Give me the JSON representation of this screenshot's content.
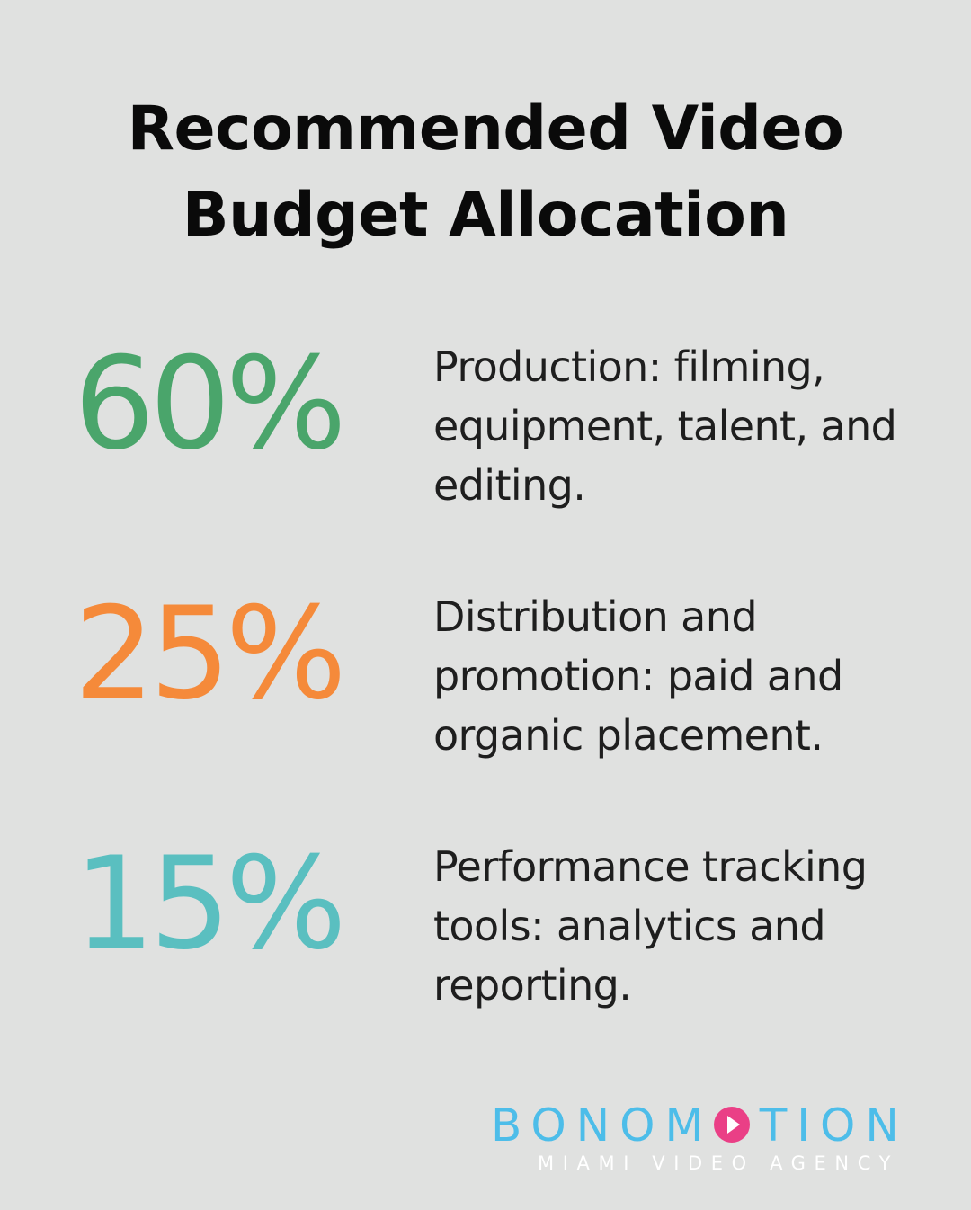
{
  "title": {
    "line1": "Recommended Video",
    "line2": "Budget Allocation"
  },
  "stats": [
    {
      "value": "60%",
      "color": "#4aa56b",
      "description": "Production: filming, equipment, talent, and editing."
    },
    {
      "value": "25%",
      "color": "#f58a3a",
      "description": "Distribution and promotion: paid and organic placement."
    },
    {
      "value": "15%",
      "color": "#5abfc0",
      "description": "Performance tracking tools: analytics and reporting."
    }
  ],
  "logo": {
    "word_before": "BONOM",
    "word_after": "TION",
    "tagline": "MIAMI VIDEO AGENCY",
    "icon": "play-circle-icon",
    "brand_color": "#4dbde9",
    "accent_color": "#ea3f86"
  }
}
